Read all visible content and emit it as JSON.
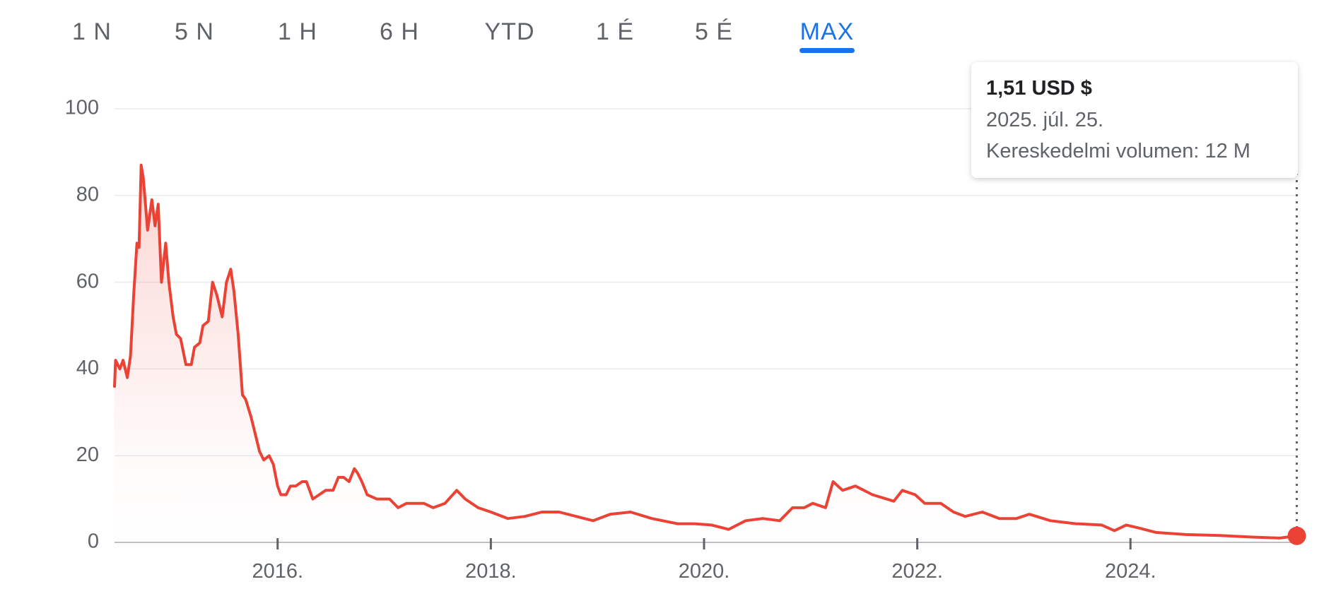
{
  "tabs": [
    "1 N",
    "5 N",
    "1 H",
    "6 H",
    "YTD",
    "1 É",
    "5 É",
    "MAX"
  ],
  "tooltip": {
    "price": "1,51 USD $",
    "date": "2025. júl. 25.",
    "volume": "Kereskedelmi volumen: 12 M"
  },
  "chart_data": {
    "type": "line",
    "x": [
      2014.47,
      2014.48,
      2014.52,
      2014.55,
      2014.59,
      2014.62,
      2014.65,
      2014.68,
      2014.7,
      2014.72,
      2014.74,
      2014.78,
      2014.82,
      2014.85,
      2014.88,
      2014.91,
      2014.95,
      2014.98,
      2015.02,
      2015.05,
      2015.09,
      2015.14,
      2015.19,
      2015.22,
      2015.27,
      2015.3,
      2015.35,
      2015.39,
      2015.43,
      2015.48,
      2015.52,
      2015.56,
      2015.59,
      2015.63,
      2015.67,
      2015.7,
      2015.75,
      2015.79,
      2015.83,
      2015.87,
      2015.92,
      2015.96,
      2016.0,
      2016.03,
      2016.08,
      2016.12,
      2016.17,
      2016.23,
      2016.27,
      2016.33,
      2016.39,
      2016.45,
      2016.52,
      2016.57,
      2016.62,
      2016.67,
      2016.72,
      2016.75,
      2016.79,
      2016.84,
      2016.93,
      2017.05,
      2017.13,
      2017.21,
      2017.37,
      2017.46,
      2017.57,
      2017.68,
      2017.76,
      2017.88,
      2018.0,
      2018.16,
      2018.32,
      2018.48,
      2018.64,
      2018.8,
      2018.96,
      2019.12,
      2019.31,
      2019.51,
      2019.75,
      2019.91,
      2020.07,
      2020.23,
      2020.39,
      2020.55,
      2020.71,
      2020.83,
      2020.94,
      2021.02,
      2021.14,
      2021.21,
      2021.3,
      2021.42,
      2021.58,
      2021.78,
      2021.86,
      2021.98,
      2022.07,
      2022.22,
      2022.34,
      2022.45,
      2022.61,
      2022.77,
      2022.93,
      2023.05,
      2023.25,
      2023.49,
      2023.73,
      2023.85,
      2023.96,
      2024.08,
      2024.24,
      2024.52,
      2024.84,
      2025.16,
      2025.4,
      2025.56
    ],
    "series": [
      {
        "color": "#ea4335",
        "values": [
          36,
          42,
          40,
          42,
          38,
          43,
          57,
          69,
          68,
          87,
          84,
          72,
          79,
          73,
          78,
          60,
          69,
          60,
          52,
          48,
          47,
          41,
          41,
          45,
          46,
          50,
          51,
          60,
          57,
          52,
          60,
          63,
          58,
          48,
          34,
          33,
          29,
          25,
          21,
          19,
          20,
          18,
          13,
          11,
          11,
          13,
          13,
          14,
          14,
          10,
          11,
          12,
          12,
          15,
          15,
          14,
          17,
          16,
          14,
          11,
          10,
          10,
          8,
          9,
          9,
          8,
          9,
          12,
          10,
          8,
          7,
          5.5,
          6,
          7,
          7,
          6,
          5,
          6.5,
          7,
          5.5,
          4.3,
          4.3,
          4,
          3,
          5,
          5.5,
          5,
          8,
          8,
          9,
          8,
          14,
          12,
          13,
          11,
          9.5,
          12,
          11,
          9,
          9,
          7,
          6,
          7,
          5.5,
          5.5,
          6.5,
          5,
          4.3,
          4,
          2.7,
          4,
          3.3,
          2.3,
          1.8,
          1.6,
          1.2,
          1,
          1.51
        ]
      }
    ],
    "xlim": [
      2014.47,
      2025.57
    ],
    "xticks": [
      {
        "value": 2016,
        "label": "2016."
      },
      {
        "value": 2018,
        "label": "2018."
      },
      {
        "value": 2020,
        "label": "2020."
      },
      {
        "value": 2022,
        "label": "2022."
      },
      {
        "value": 2024,
        "label": "2024."
      }
    ],
    "ylim": [
      0,
      100
    ],
    "yticks": [
      0,
      20,
      40,
      60,
      80,
      100
    ],
    "grid": true
  }
}
